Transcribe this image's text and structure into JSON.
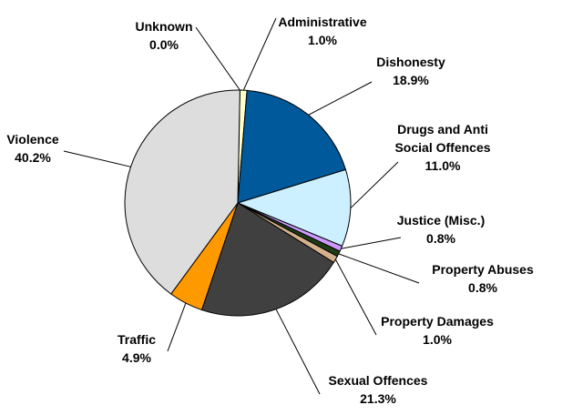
{
  "chart_data": {
    "type": "pie",
    "title": "",
    "slices": [
      {
        "name": "Administrative",
        "value": 1.0,
        "label": "1.0%",
        "color": "#FFFFCC"
      },
      {
        "name": "Dishonesty",
        "value": 18.9,
        "label": "18.9%",
        "color": "#00599A"
      },
      {
        "name": "Drugs and Anti Social Offences",
        "value": 11.0,
        "label": "11.0%",
        "color": "#CCF0FF",
        "name_lines": [
          "Drugs and Anti",
          "Social Offences"
        ]
      },
      {
        "name": "Justice (Misc.)",
        "value": 0.8,
        "label": "0.8%",
        "color": "#CC99FF"
      },
      {
        "name": "Property Abuses",
        "value": 0.8,
        "label": "0.8%",
        "color": "#1E3C14"
      },
      {
        "name": "Property Damages",
        "value": 1.0,
        "label": "1.0%",
        "color": "#D6B08C"
      },
      {
        "name": "Sexual Offences",
        "value": 21.3,
        "label": "21.3%",
        "color": "#404040"
      },
      {
        "name": "Traffic",
        "value": 4.9,
        "label": "4.9%",
        "color": "#FF9900"
      },
      {
        "name": "Violence",
        "value": 40.2,
        "label": "40.2%",
        "color": "#DDDDDD"
      },
      {
        "name": "Unknown",
        "value": 0.0,
        "label": "0.0%",
        "color": "#FFFFFF"
      }
    ],
    "legend": "none",
    "label_style": "callout-with-leader-lines"
  }
}
